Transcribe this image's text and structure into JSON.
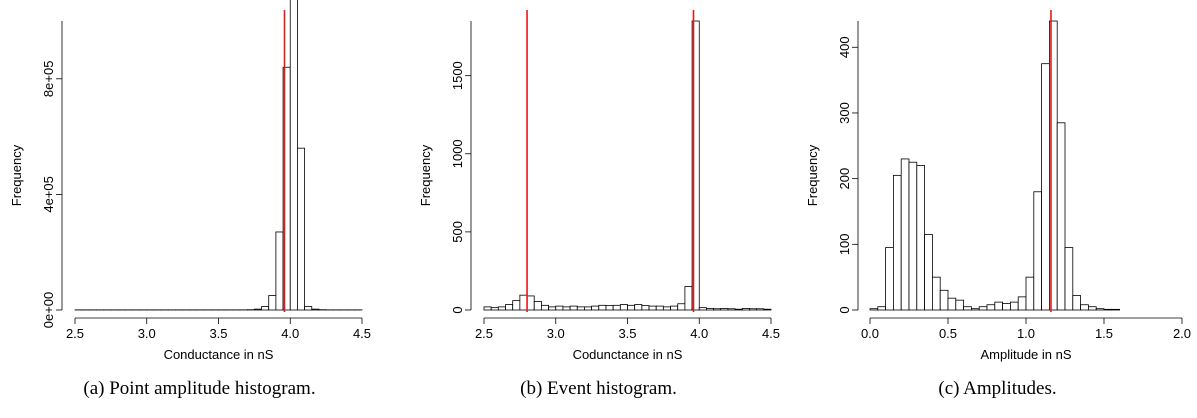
{
  "chart_data": [
    {
      "type": "bar",
      "title": "",
      "xlabel": "Conductance in nS",
      "ylabel": "Frequency",
      "xlim": [
        2.5,
        4.5
      ],
      "ylim": [
        0,
        1000000
      ],
      "xticks": [
        2.5,
        3.0,
        3.5,
        4.0,
        4.5
      ],
      "xtick_labels": [
        "2.5",
        "3.0",
        "3.5",
        "4.0",
        "4.5"
      ],
      "yticks": [
        0,
        400000,
        800000
      ],
      "ytick_labels": [
        "0e+00",
        "4e+05",
        "8e+05"
      ],
      "bin_width": 0.05,
      "x": [
        2.5,
        2.55,
        2.6,
        2.65,
        2.7,
        2.75,
        2.8,
        2.85,
        2.9,
        2.95,
        3.0,
        3.05,
        3.1,
        3.15,
        3.2,
        3.25,
        3.3,
        3.35,
        3.4,
        3.45,
        3.5,
        3.55,
        3.6,
        3.65,
        3.7,
        3.75,
        3.8,
        3.85,
        3.9,
        3.95,
        4.0,
        4.05,
        4.1,
        4.15,
        4.2,
        4.25,
        4.3,
        4.35,
        4.4,
        4.45
      ],
      "values": [
        500,
        500,
        500,
        500,
        500,
        500,
        500,
        500,
        500,
        500,
        500,
        500,
        500,
        500,
        500,
        500,
        500,
        500,
        500,
        500,
        500,
        500,
        500,
        500,
        1000,
        3000,
        12000,
        50000,
        270000,
        840000,
        1120000,
        560000,
        12000,
        3000,
        1000,
        500,
        500,
        500,
        500,
        500
      ],
      "vline": 3.96,
      "vline_color": "#e3191c",
      "grid": false,
      "caption": "(a) Point amplitude histogram."
    },
    {
      "type": "bar",
      "title": "",
      "xlabel": "Codunctance in nS",
      "ylabel": "Frequency",
      "xlim": [
        2.5,
        4.5
      ],
      "ylim": [
        0,
        1850
      ],
      "xticks": [
        2.5,
        3.0,
        3.5,
        4.0,
        4.5
      ],
      "xtick_labels": [
        "2.5",
        "3.0",
        "3.5",
        "4.0",
        "4.5"
      ],
      "yticks": [
        0,
        500,
        1000,
        1500
      ],
      "ytick_labels": [
        "0",
        "500",
        "1000",
        "1500"
      ],
      "bin_width": 0.05,
      "x": [
        2.5,
        2.55,
        2.6,
        2.65,
        2.7,
        2.75,
        2.8,
        2.85,
        2.9,
        2.95,
        3.0,
        3.05,
        3.1,
        3.15,
        3.2,
        3.25,
        3.3,
        3.35,
        3.4,
        3.45,
        3.5,
        3.55,
        3.6,
        3.65,
        3.7,
        3.75,
        3.8,
        3.85,
        3.9,
        3.95,
        4.0,
        4.05,
        4.1,
        4.15,
        4.2,
        4.25,
        4.3,
        4.35,
        4.4,
        4.45
      ],
      "values": [
        20,
        15,
        20,
        35,
        60,
        95,
        90,
        55,
        30,
        20,
        25,
        20,
        25,
        20,
        20,
        25,
        30,
        28,
        30,
        35,
        30,
        35,
        28,
        25,
        25,
        20,
        25,
        40,
        150,
        1850,
        15,
        10,
        8,
        10,
        8,
        5,
        10,
        8,
        8,
        5
      ],
      "vlines": [
        2.8,
        3.96
      ],
      "vline_color": "#e3191c",
      "grid": false,
      "caption": "(b) Event histogram."
    },
    {
      "type": "bar",
      "title": "",
      "xlabel": "Amplitude in nS",
      "ylabel": "Frequency",
      "xlim": [
        0,
        2.0
      ],
      "ylim": [
        0,
        440
      ],
      "xticks": [
        0.0,
        0.5,
        1.0,
        1.5,
        2.0
      ],
      "xtick_labels": [
        "0.0",
        "0.5",
        "1.0",
        "1.5",
        "2.0"
      ],
      "yticks": [
        0,
        100,
        200,
        300,
        400
      ],
      "ytick_labels": [
        "0",
        "100",
        "200",
        "300",
        "400"
      ],
      "bin_width": 0.05,
      "x": [
        0.0,
        0.05,
        0.1,
        0.15,
        0.2,
        0.25,
        0.3,
        0.35,
        0.4,
        0.45,
        0.5,
        0.55,
        0.6,
        0.65,
        0.7,
        0.75,
        0.8,
        0.85,
        0.9,
        0.95,
        1.0,
        1.05,
        1.1,
        1.15,
        1.2,
        1.25,
        1.3,
        1.35,
        1.4,
        1.45,
        1.5,
        1.55,
        1.6
      ],
      "values": [
        2,
        5,
        95,
        205,
        230,
        225,
        220,
        115,
        50,
        30,
        18,
        15,
        5,
        2,
        5,
        8,
        12,
        10,
        12,
        20,
        50,
        180,
        375,
        440,
        285,
        95,
        22,
        8,
        5,
        2,
        1,
        1,
        0
      ],
      "vline": 1.16,
      "vline_color": "#e3191c",
      "grid": false,
      "caption": "(c) Amplitudes."
    }
  ]
}
